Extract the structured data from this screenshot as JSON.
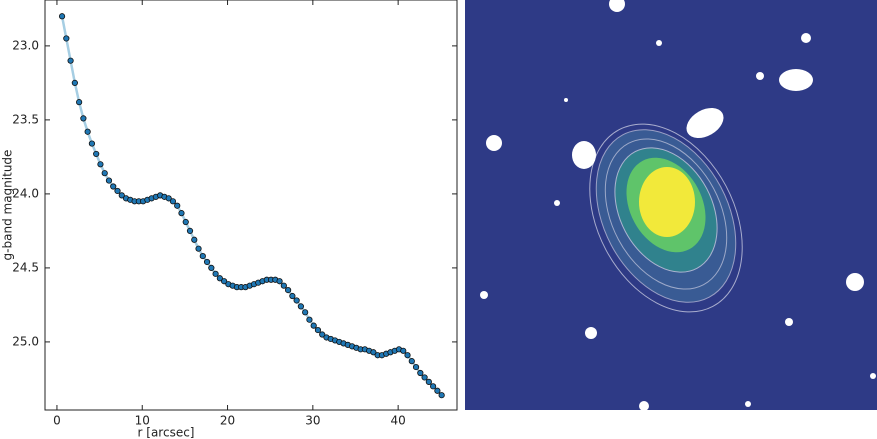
{
  "chart_data": {
    "type": "line",
    "xlabel": "r [arcsec]",
    "ylabel": "g-band magnitude",
    "x": [
      0.6,
      1.1,
      1.6,
      2.1,
      2.6,
      3.1,
      3.6,
      4.1,
      4.6,
      5.1,
      5.6,
      6.1,
      6.6,
      7.1,
      7.6,
      8.1,
      8.6,
      9.1,
      9.6,
      10.1,
      10.6,
      11.1,
      11.6,
      12.1,
      12.6,
      13.1,
      13.6,
      14.1,
      14.6,
      15.1,
      15.6,
      16.1,
      16.6,
      17.1,
      17.6,
      18.1,
      18.6,
      19.1,
      19.6,
      20.1,
      20.6,
      21.1,
      21.6,
      22.1,
      22.6,
      23.1,
      23.6,
      24.1,
      24.6,
      25.1,
      25.6,
      26.1,
      26.6,
      27.1,
      27.6,
      28.1,
      28.6,
      29.1,
      29.6,
      30.1,
      30.6,
      31.1,
      31.6,
      32.1,
      32.6,
      33.1,
      33.6,
      34.1,
      34.6,
      35.1,
      35.6,
      36.1,
      36.6,
      37.1,
      37.6,
      38.1,
      38.6,
      39.1,
      39.6,
      40.1,
      40.6,
      41.1,
      41.6,
      42.1,
      42.6,
      43.1,
      43.6,
      44.1,
      44.6,
      45.1
    ],
    "values": [
      22.8,
      22.95,
      23.1,
      23.25,
      23.38,
      23.49,
      23.58,
      23.66,
      23.73,
      23.8,
      23.86,
      23.91,
      23.95,
      23.98,
      24.01,
      24.03,
      24.04,
      24.05,
      24.05,
      24.05,
      24.04,
      24.03,
      24.02,
      24.01,
      24.02,
      24.03,
      24.05,
      24.08,
      24.13,
      24.19,
      24.25,
      24.31,
      24.37,
      24.42,
      24.46,
      24.5,
      24.54,
      24.57,
      24.59,
      24.61,
      24.62,
      24.63,
      24.63,
      24.63,
      24.62,
      24.61,
      24.6,
      24.59,
      24.58,
      24.58,
      24.58,
      24.59,
      24.62,
      24.65,
      24.69,
      24.72,
      24.76,
      24.8,
      24.85,
      24.89,
      24.92,
      24.95,
      24.97,
      24.98,
      24.99,
      25.0,
      25.01,
      25.02,
      25.03,
      25.04,
      25.05,
      25.05,
      25.06,
      25.07,
      25.09,
      25.09,
      25.08,
      25.07,
      25.06,
      25.05,
      25.06,
      25.09,
      25.13,
      25.17,
      25.21,
      25.24,
      25.27,
      25.3,
      25.33,
      25.36
    ],
    "marker_color": "#1f77b4",
    "line_color": "#a6cee3",
    "xlim": [
      -1.4,
      46.9
    ],
    "xticks": [
      0,
      10,
      20,
      30,
      40
    ],
    "ylim": [
      22.69,
      25.46
    ],
    "invert_y": true,
    "yticks": [
      {
        "value": 23,
        "label": "23.0"
      },
      {
        "value": 23.5,
        "label": "23.5"
      },
      {
        "value": 24,
        "label": "24.0"
      },
      {
        "value": 24.5,
        "label": "24.5"
      },
      {
        "value": 25,
        "label": "25.0"
      }
    ]
  }
}
